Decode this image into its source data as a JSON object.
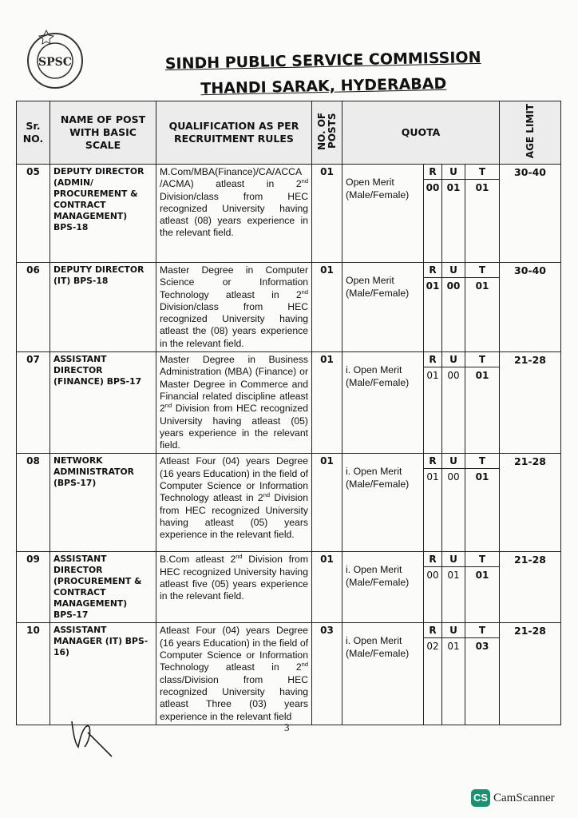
{
  "header": {
    "line1": "SINDH PUBLIC SERVICE COMMISSION",
    "line2": "THANDI SARAK, HYDERABAD",
    "logo_text": "SPSC"
  },
  "columns": {
    "sr": "Sr. NO.",
    "name": "NAME OF POST WITH BASIC SCALE",
    "qualification": "QUALIFICATION AS PER RECRUITMENT RULES",
    "posts": "NO. OF POSTS",
    "quota": "QUOTA",
    "age": "AGE LIMIT"
  },
  "quota_headers": {
    "r": "R",
    "u": "U",
    "t": "T"
  },
  "rows": [
    {
      "sr": "05",
      "name": "DEPUTY DIRECTOR (ADMIN/ PROCUREMENT & CONTRACT MANAGEMENT) BPS-18",
      "qual_pre": "M.Com/MBA(Finance)/CA/ACCA /ACMA) atleast in 2",
      "qual_sup": "nd",
      "qual_post": " Division/class from HEC recognized University having atleast (08) years experience in the relevant field.",
      "posts": "01",
      "quota": "Open Merit (Male/Female)",
      "r": "00",
      "u": "01",
      "t": "01",
      "age": "30-40"
    },
    {
      "sr": "06",
      "name": "DEPUTY DIRECTOR (IT) BPS-18",
      "qual_pre": "Master Degree in Computer Science or Information Technology atleast in 2",
      "qual_sup": "nd",
      "qual_post": " Division/class from HEC recognized University having atleast the (08) years experience in the relevant field.",
      "posts": "01",
      "quota": "Open Merit (Male/Female)",
      "r": "01",
      "u": "00",
      "t": "01",
      "age": "30-40"
    },
    {
      "sr": "07",
      "name": "ASSISTANT DIRECTOR (FINANCE) BPS-17",
      "qual_pre": "Master Degree in Business Administration (MBA) (Finance) or Master Degree in Commerce and Financial related discipline atleast 2",
      "qual_sup": "nd",
      "qual_post": " Division from HEC recognized University having atleast (05) years experience in the relevant field.",
      "posts": "01",
      "quota": "i. Open Merit (Male/Female)",
      "r": "01",
      "u": "00",
      "t": "01",
      "age": "21-28"
    },
    {
      "sr": "08",
      "name": "NETWORK ADMINISTRATOR (BPS-17)",
      "qual_pre": "Atleast Four (04) years Degree (16 years Education) in the field of Computer Science or Information Technology atleast in 2",
      "qual_sup": "nd",
      "qual_post": " Division from HEC recognized University having atleast (05) years experience in the relevant field.",
      "posts": "01",
      "quota": "i. Open Merit (Male/Female)",
      "r": "01",
      "u": "00",
      "t": "01",
      "age": "21-28"
    },
    {
      "sr": "09",
      "name": "ASSISTANT DIRECTOR (PROCUREMENT & CONTRACT MANAGEMENT) BPS-17",
      "qual_pre": "B.Com atleast 2",
      "qual_sup": "nd",
      "qual_post": " Division from HEC recognized University having atleast five (05) years experience in the relevant field.",
      "posts": "01",
      "quota": "i. Open Merit (Male/Female)",
      "r": "00",
      "u": "01",
      "t": "01",
      "age": "21-28"
    },
    {
      "sr": "10",
      "name": "ASSISTANT MANAGER (IT) BPS-16)",
      "qual_pre": "Atleast Four (04) years Degree (16 years Education) in the field of Computer Science or Information Technology atleast in 2",
      "qual_sup": "nd",
      "qual_post": " class/Division from HEC recognized University having atleast Three (03) years experience in the relevant field",
      "posts": "03",
      "quota": "i. Open Merit (Male/Female)",
      "r": "02",
      "u": "01",
      "t": "03",
      "age": "21-28"
    }
  ],
  "footer": {
    "page_number": "3",
    "watermark": "CamScanner",
    "watermark_badge": "CS"
  },
  "colors": {
    "header_bg": "#ececec",
    "watermark_badge": "#1f8f72"
  }
}
